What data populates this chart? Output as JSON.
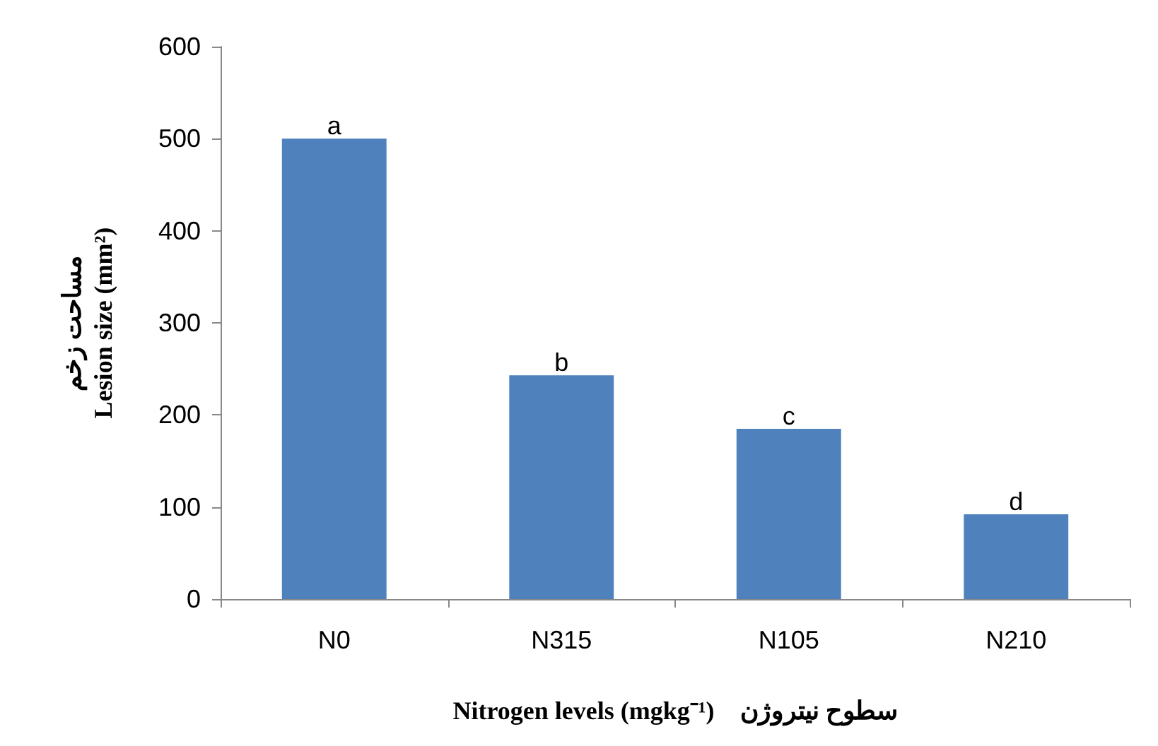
{
  "chart_data": {
    "type": "bar",
    "categories": [
      "N0",
      "N315",
      "N105",
      "N210"
    ],
    "values": [
      500,
      243,
      185,
      92
    ],
    "color": "#4f81bd",
    "xlabel": "Nitrogen levels (mgkg⁻¹)    سطوح نیتروژن",
    "ylabel": "مساحت زخم\nLesion size (mm²)",
    "ylim": [
      0,
      600
    ],
    "yticks": [
      0,
      100,
      200,
      300,
      400,
      500,
      600
    ],
    "grid": false,
    "annotations": [
      {
        "text": "a",
        "x": "N0",
        "y": 500
      },
      {
        "text": "b",
        "x": "N315",
        "y": 243
      },
      {
        "text": "c",
        "x": "N105",
        "y": 185
      },
      {
        "text": "d",
        "x": "N210",
        "y": 92
      }
    ]
  }
}
